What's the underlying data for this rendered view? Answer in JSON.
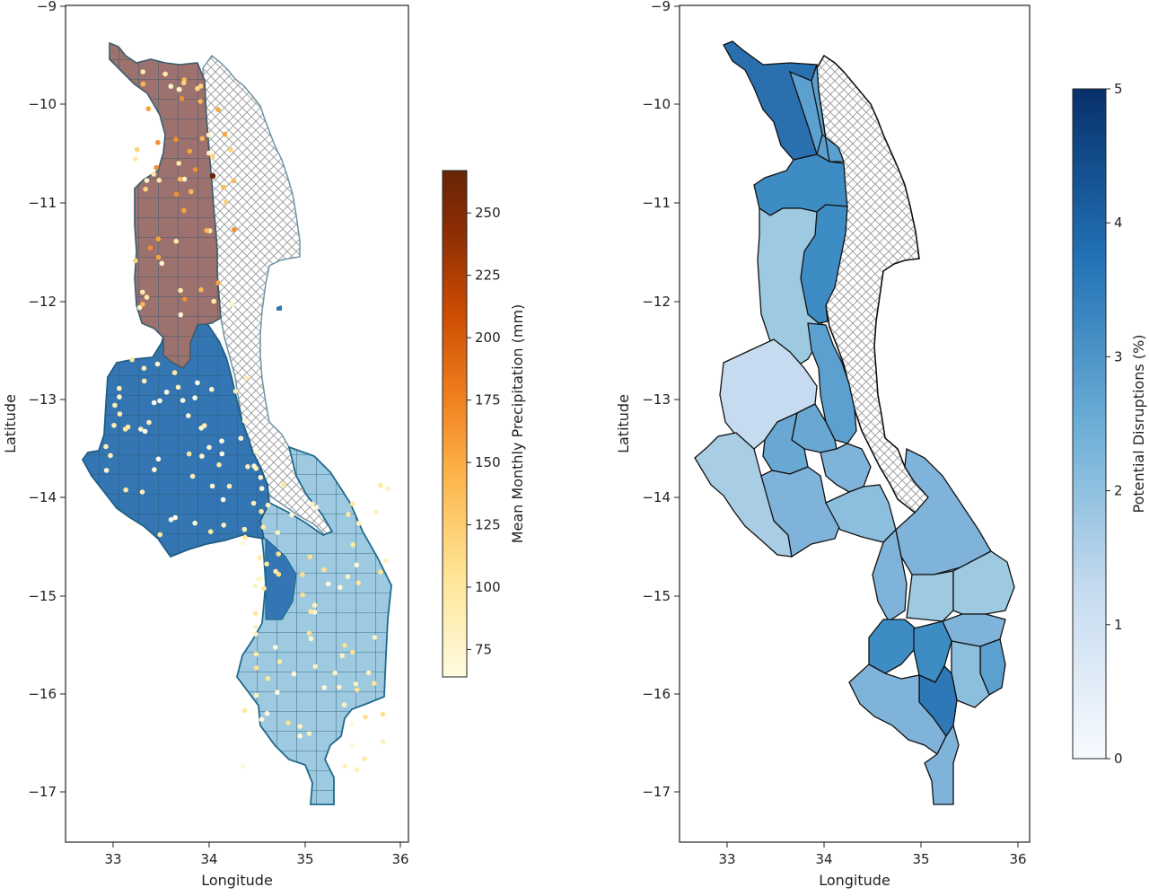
{
  "left_map": {
    "xlabel": "Longitude",
    "ylabel": "Latitude",
    "x_ticks": [
      "33",
      "34",
      "35",
      "36"
    ],
    "y_ticks": [
      "−9",
      "−10",
      "−11",
      "−12",
      "−13",
      "−14",
      "−15",
      "−16",
      "−17"
    ],
    "colorbar": {
      "label": "Mean Monthly Precipitation (mm)",
      "ticks": [
        "250",
        "225",
        "200",
        "175",
        "150",
        "125",
        "100",
        "75"
      ],
      "range": [
        64,
        267
      ],
      "colors": [
        "#fffbe0",
        "#ffe596",
        "#fdb44a",
        "#f0801f",
        "#cc4c02",
        "#8c2d04",
        "#662506"
      ]
    },
    "region_colors": {
      "north": "#9c716e",
      "central": "#3476b3",
      "south": "#9ecae1"
    }
  },
  "right_map": {
    "xlabel": "Longitude",
    "ylabel": "Latitude",
    "x_ticks": [
      "33",
      "34",
      "35",
      "36"
    ],
    "y_ticks": [
      "−9",
      "−10",
      "−11",
      "−12",
      "−13",
      "−14",
      "−15",
      "−16",
      "−17"
    ],
    "colorbar": {
      "label": "Potential Disruptions (%)",
      "ticks": [
        "5",
        "4",
        "3",
        "2",
        "1",
        "0"
      ],
      "range": [
        0,
        5
      ],
      "colors": [
        "#f7fbff",
        "#c6dbef",
        "#6baed6",
        "#2171b5",
        "#08306b"
      ]
    }
  },
  "chart_data": [
    {
      "type": "scatter",
      "subtype": "choropleth-with-stations",
      "xlabel": "Longitude",
      "ylabel": "Latitude",
      "xlim": [
        32.5,
        36.1
      ],
      "ylim": [
        -17.5,
        -9
      ],
      "colorbar_label": "Mean Monthly Precipitation (mm)",
      "colorbar_range": [
        64,
        267
      ],
      "regions": [
        {
          "name": "north",
          "color": "#9c716e"
        },
        {
          "name": "central",
          "color": "#3476b3"
        },
        {
          "name": "south",
          "color": "#9ecae1"
        }
      ]
    },
    {
      "type": "heatmap",
      "subtype": "choropleth",
      "xlabel": "Longitude",
      "ylabel": "Latitude",
      "xlim": [
        32.5,
        36.1
      ],
      "ylim": [
        -17.5,
        -9
      ],
      "colorbar_label": "Potential Disruptions (%)",
      "colorbar_range": [
        0,
        5
      ],
      "colorbar_ticks": [
        0,
        1,
        2,
        3,
        4,
        5
      ]
    }
  ]
}
